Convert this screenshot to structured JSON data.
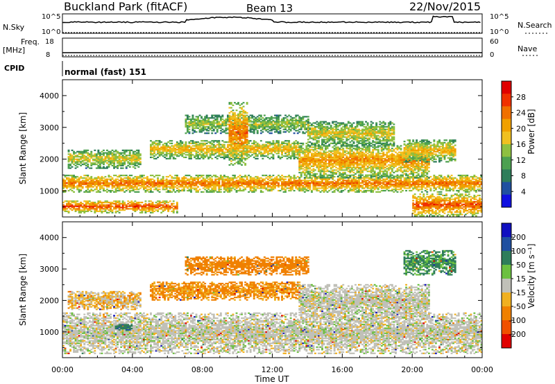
{
  "header": {
    "station": "Buckland Park (fitACF)",
    "beam": "Beam 13",
    "date": "22/Nov/2015"
  },
  "noise_panel": {
    "left_label": "N.Sky",
    "right_label": "N.Search",
    "left_ticks": [
      "10^5",
      "10^0"
    ],
    "right_ticks": [
      "10^5",
      "10^0"
    ]
  },
  "freq_panel": {
    "left_label_1": "Freq.",
    "left_label_2": "[MHz]",
    "right_label": "Nave",
    "left_ticks": [
      "18",
      "8"
    ],
    "right_ticks": [
      "60",
      "0"
    ]
  },
  "cpid": {
    "label": "CPID",
    "value": "normal (fast) 151"
  },
  "colors": {
    "power_scale": [
      "#1010e0",
      "#2050a0",
      "#2e7d5a",
      "#4ca050",
      "#8ec040",
      "#f0c020",
      "#f0a000",
      "#f07000",
      "#f03000",
      "#e00000"
    ],
    "velocity_scale": [
      "#1010c0",
      "#2050a0",
      "#2e7d5a",
      "#6cc040",
      "#c0c0b8",
      "#f0b020",
      "#f08000",
      "#f05000",
      "#e00000"
    ],
    "line": "#000000"
  },
  "chart_data": [
    {
      "type": "heatmap",
      "panel": "power",
      "xlabel": "",
      "ylabel": "Slant Range [km]",
      "x_ticks": [
        "00:00",
        "04:00",
        "08:00",
        "12:00",
        "16:00",
        "20:00",
        "00:00"
      ],
      "x_range_hours": [
        0,
        24
      ],
      "y_ticks": [
        1000,
        2000,
        3000,
        4000
      ],
      "y_range_km": [
        180,
        4500
      ],
      "colorbar_label": "Power [dB]",
      "colorbar_ticks": [
        4,
        8,
        12,
        16,
        20,
        24,
        28
      ],
      "colorbar_range": [
        0,
        32
      ],
      "echo_bands": [
        {
          "t0": 0.0,
          "t1": 6.5,
          "r0": 300,
          "r1": 700,
          "level": 24
        },
        {
          "t0": 0.0,
          "t1": 24.0,
          "r0": 950,
          "r1": 1500,
          "level": 22
        },
        {
          "t0": 0.3,
          "t1": 4.5,
          "r0": 1700,
          "r1": 2300,
          "level": 16
        },
        {
          "t0": 5.0,
          "t1": 13.5,
          "r0": 2000,
          "r1": 2600,
          "level": 18
        },
        {
          "t0": 7.0,
          "t1": 14.0,
          "r0": 2800,
          "r1": 3400,
          "level": 14
        },
        {
          "t0": 13.5,
          "t1": 21.0,
          "r0": 1400,
          "r1": 2500,
          "level": 20
        },
        {
          "t0": 14.0,
          "t1": 19.0,
          "r0": 2400,
          "r1": 3200,
          "level": 16
        },
        {
          "t0": 19.5,
          "t1": 22.5,
          "r0": 1900,
          "r1": 2600,
          "level": 18
        },
        {
          "t0": 20.0,
          "t1": 24.0,
          "r0": 200,
          "r1": 900,
          "level": 24
        },
        {
          "t0": 9.5,
          "t1": 10.5,
          "r0": 1800,
          "r1": 3800,
          "level": 22
        }
      ]
    },
    {
      "type": "heatmap",
      "panel": "velocity",
      "xlabel": "Time UT",
      "ylabel": "Slant Range [km]",
      "x_ticks": [
        "00:00",
        "04:00",
        "08:00",
        "12:00",
        "16:00",
        "20:00",
        "00:00"
      ],
      "x_range_hours": [
        0,
        24
      ],
      "y_ticks": [
        1000,
        2000,
        3000,
        4000
      ],
      "y_range_km": [
        180,
        4500
      ],
      "colorbar_label": "Velocity [m s⁻¹]",
      "colorbar_ticks": [
        200,
        100,
        50,
        15,
        -15,
        -50,
        -100,
        -200
      ],
      "echo_bands": [
        {
          "t0": 0.0,
          "t1": 24.0,
          "r0": 300,
          "r1": 1600,
          "level": 0
        },
        {
          "t0": 5.0,
          "t1": 13.5,
          "r0": 2000,
          "r1": 2600,
          "level": -40
        },
        {
          "t0": 7.0,
          "t1": 14.0,
          "r0": 2800,
          "r1": 3400,
          "level": -50
        },
        {
          "t0": 13.5,
          "t1": 21.0,
          "r0": 1400,
          "r1": 2500,
          "level": 0
        },
        {
          "t0": 0.3,
          "t1": 4.5,
          "r0": 1700,
          "r1": 2300,
          "level": -20
        },
        {
          "t0": 19.5,
          "t1": 22.5,
          "r0": 2800,
          "r1": 3600,
          "level": 40
        },
        {
          "t0": 3.0,
          "t1": 4.0,
          "r0": 1050,
          "r1": 1250,
          "level": 60
        }
      ]
    }
  ]
}
